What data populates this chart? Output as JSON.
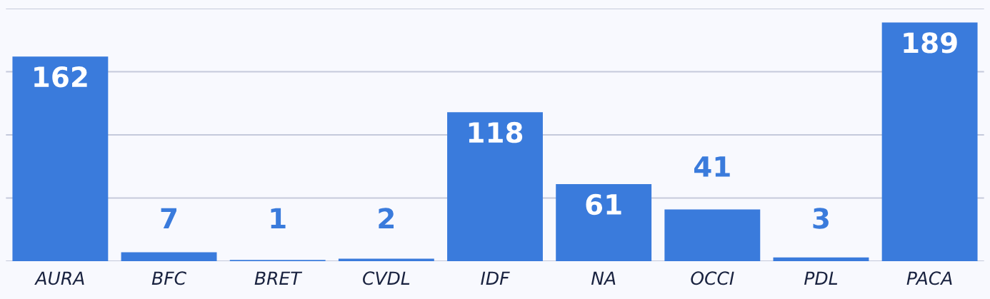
{
  "chart_data": {
    "type": "bar",
    "categories": [
      "AURA",
      "BFC",
      "BRET",
      "CVDL",
      "IDF",
      "NA",
      "OCCI",
      "PDL",
      "PACA"
    ],
    "values": [
      162,
      7,
      1,
      2,
      118,
      61,
      41,
      3,
      189
    ],
    "color": "#3a7bdc",
    "ylim": [
      0,
      200
    ],
    "yticks": [
      {
        "value": 0,
        "label": null
      },
      {
        "value": 50,
        "label": null
      },
      {
        "value": 100,
        "label": null
      },
      {
        "value": 150,
        "label": null
      },
      {
        "value": 200,
        "label": null
      }
    ],
    "tick_labels": "x",
    "grid": "y",
    "data_labels": true
  }
}
